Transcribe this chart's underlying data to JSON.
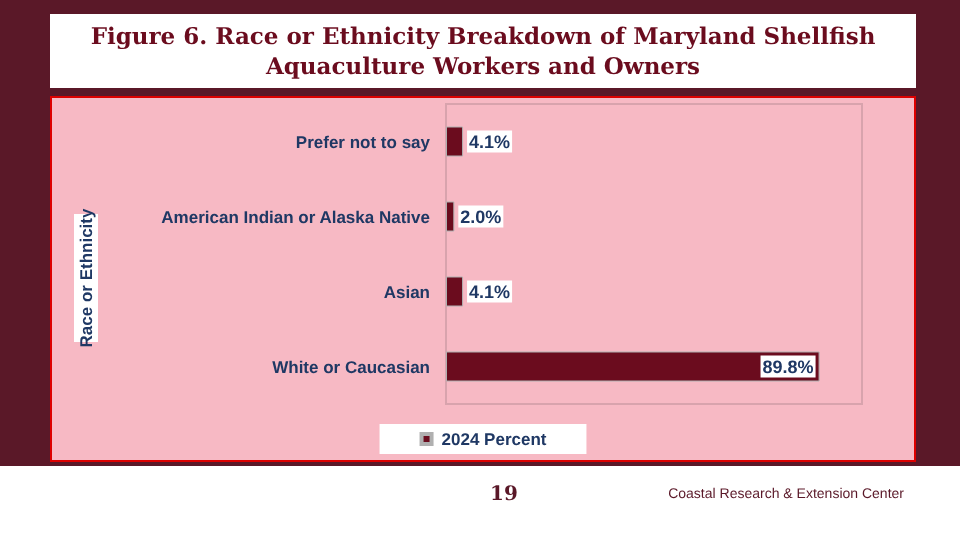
{
  "chart_data": {
    "type": "bar",
    "orientation": "horizontal",
    "title": "Figure 6. Race or Ethnicity Breakdown of Maryland Shellfish Aquaculture Workers and Owners",
    "ylabel": "Race or Ethnicity",
    "categories": [
      "Prefer not to say",
      "American Indian or Alaska Native",
      "Asian",
      "White or Caucasian"
    ],
    "series": [
      {
        "name": "2024 Percent",
        "color": "#6b0c1e",
        "values": [
          4.1,
          2.0,
          4.1,
          89.8
        ],
        "value_labels": [
          "4.1%",
          "2.0%",
          "4.1%",
          "89.8%"
        ]
      }
    ],
    "xlim": [
      0,
      100
    ],
    "tick_labels": "y",
    "grid": false,
    "legend": "bottom",
    "annotations": [
      "19",
      "Coastal Research & Extension Center"
    ]
  }
}
